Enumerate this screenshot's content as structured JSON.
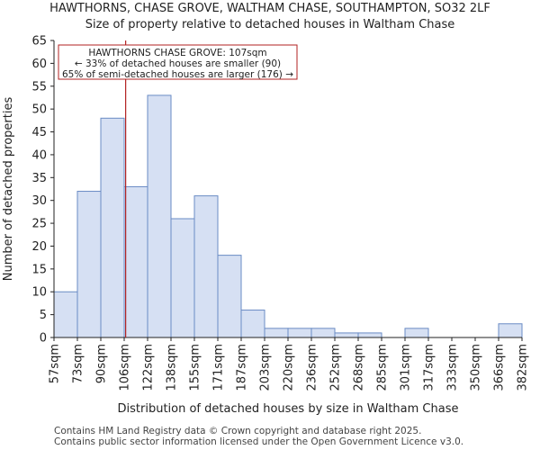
{
  "title": "HAWTHORNS, CHASE GROVE, WALTHAM CHASE, SOUTHAMPTON, SO32 2LF",
  "subtitle": "Size of property relative to detached houses in Waltham Chase",
  "footer": [
    "Contains HM Land Registry data © Crown copyright and database right 2025.",
    "Contains public sector information licensed under the Open Government Licence v3.0."
  ],
  "colors": {
    "bar_fill": "#d6e0f3",
    "bar_stroke": "#6a8bc4",
    "marker": "#b22222",
    "axis": "#222222"
  },
  "chart_data": {
    "type": "bar",
    "xlabel": "Distribution of detached houses by size in Waltham Chase",
    "ylabel": "Number of detached properties",
    "ylim": [
      0,
      65
    ],
    "yticks": [
      0,
      5,
      10,
      15,
      20,
      25,
      30,
      35,
      40,
      45,
      50,
      55,
      60,
      65
    ],
    "bin_edges": [
      57,
      73,
      90,
      106,
      122,
      138,
      155,
      171,
      187,
      203,
      220,
      236,
      252,
      268,
      285,
      301,
      317,
      333,
      350,
      366,
      382
    ],
    "tick_labels": [
      "57sqm",
      "73sqm",
      "90sqm",
      "106sqm",
      "122sqm",
      "138sqm",
      "155sqm",
      "171sqm",
      "187sqm",
      "203sqm",
      "220sqm",
      "236sqm",
      "252sqm",
      "268sqm",
      "285sqm",
      "301sqm",
      "317sqm",
      "333sqm",
      "350sqm",
      "366sqm",
      "382sqm"
    ],
    "values": [
      10,
      32,
      48,
      33,
      53,
      26,
      31,
      18,
      6,
      2,
      2,
      2,
      1,
      1,
      0,
      2,
      0,
      0,
      0,
      3
    ],
    "marker_value": 107,
    "annotation": [
      "HAWTHORNS CHASE GROVE: 107sqm",
      "← 33% of detached houses are smaller (90)",
      "65% of semi-detached houses are larger (176) →"
    ],
    "grid": false
  }
}
